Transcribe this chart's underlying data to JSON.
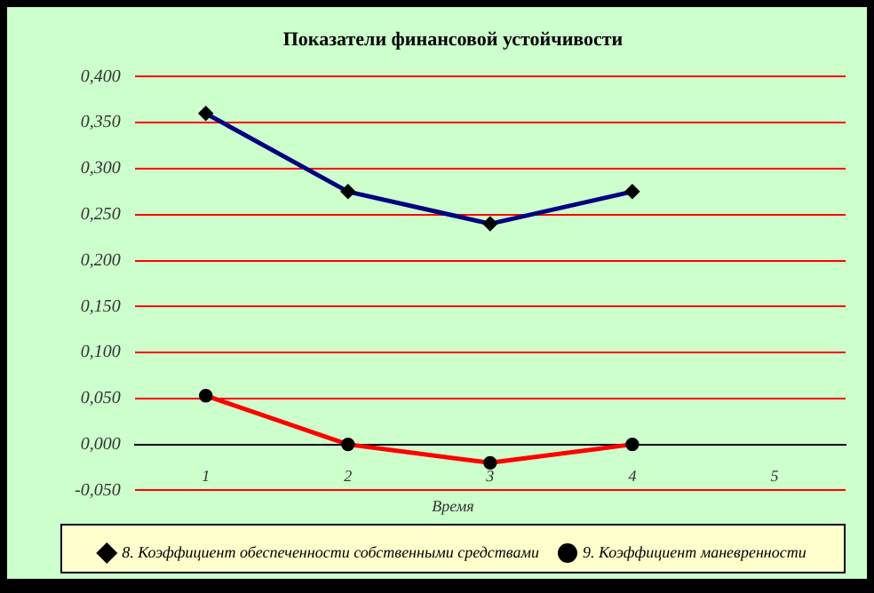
{
  "chart_data": {
    "type": "line",
    "title": "Показатели финансовой устойчивости",
    "xlabel": "Время",
    "categories": [
      "1",
      "2",
      "3",
      "4",
      "5"
    ],
    "ylim": [
      -0.05,
      0.4
    ],
    "yticks": [
      {
        "value": -0.05,
        "label": "-0,050"
      },
      {
        "value": 0,
        "label": "0,000"
      },
      {
        "value": 0.05,
        "label": "0,050"
      },
      {
        "value": 0.1,
        "label": "0,100"
      },
      {
        "value": 0.15,
        "label": "0,150"
      },
      {
        "value": 0.2,
        "label": "0,200"
      },
      {
        "value": 0.25,
        "label": "0,250"
      },
      {
        "value": 0.3,
        "label": "0,300"
      },
      {
        "value": 0.35,
        "label": "0,350"
      },
      {
        "value": 0.4,
        "label": "0,400"
      }
    ],
    "grid": "y",
    "legend": "bottom",
    "line_style": "solid",
    "series": [
      {
        "name": "8. Коэффициент обеспеченности собственными средствами",
        "color": "#000080",
        "marker": "diamond",
        "values": [
          0.36,
          0.275,
          0.24,
          0.275,
          null
        ]
      },
      {
        "name": "9. Коэффициент маневренности",
        "color": "#ff0000",
        "marker": "circle",
        "values": [
          0.053,
          0,
          -0.02,
          0,
          null
        ]
      }
    ]
  }
}
